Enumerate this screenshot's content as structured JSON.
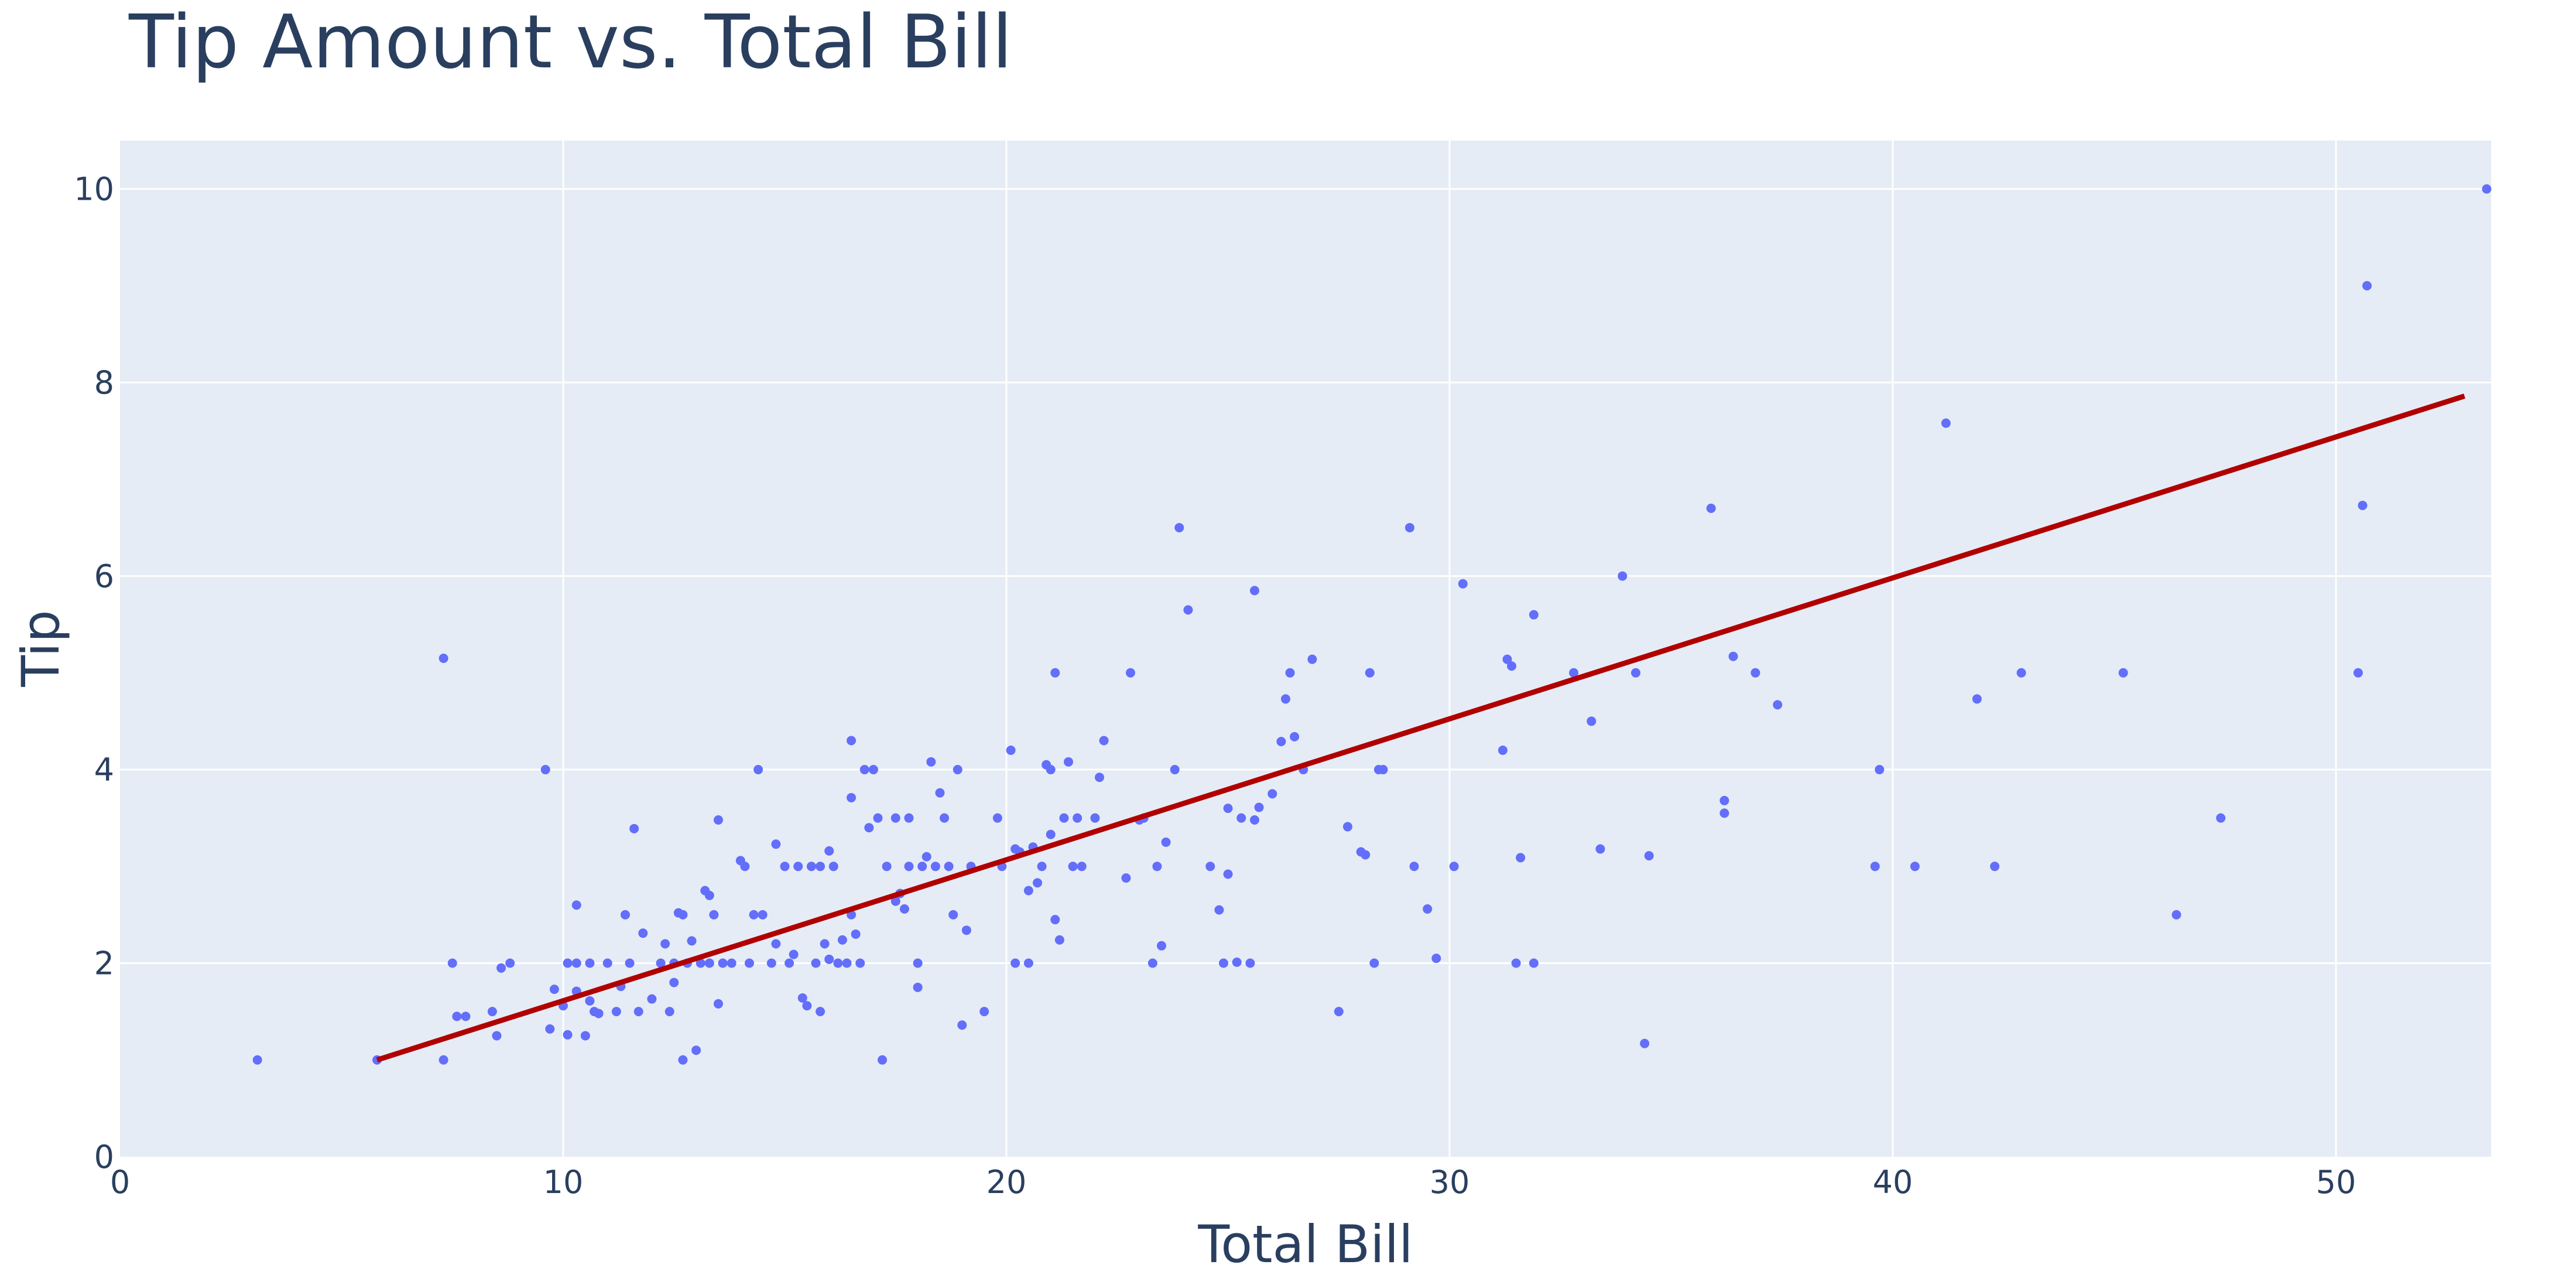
{
  "chart_data": {
    "type": "scatter",
    "title": "Tip Amount vs. Total Bill",
    "xlabel": "Total Bill",
    "ylabel": "Tip",
    "xlim": [
      0,
      53.5
    ],
    "ylim": [
      0,
      10.5
    ],
    "xticks": [
      0,
      10,
      20,
      30,
      40,
      50
    ],
    "yticks": [
      0,
      2,
      4,
      6,
      8,
      10
    ],
    "grid": true,
    "colors": {
      "plot_bg": "#e5ecf6",
      "points": "#636efa",
      "trendline": "#b10000",
      "text": "#2a3f5f",
      "grid": "#ffffff"
    },
    "trendline": {
      "x": [
        5.8,
        52.9
      ],
      "y": [
        1.0,
        7.86
      ]
    },
    "points": [
      [
        3.1,
        1.0
      ],
      [
        5.8,
        1.0
      ],
      [
        7.3,
        1.0
      ],
      [
        7.3,
        5.15
      ],
      [
        7.5,
        2.0
      ],
      [
        7.6,
        1.45
      ],
      [
        7.8,
        1.45
      ],
      [
        8.4,
        1.5
      ],
      [
        8.5,
        1.25
      ],
      [
        8.6,
        1.95
      ],
      [
        8.8,
        2.0
      ],
      [
        9.6,
        4.0
      ],
      [
        9.7,
        1.32
      ],
      [
        9.8,
        1.73
      ],
      [
        10.0,
        1.56
      ],
      [
        10.1,
        2.0
      ],
      [
        10.1,
        1.26
      ],
      [
        10.3,
        1.71
      ],
      [
        10.3,
        2.6
      ],
      [
        10.3,
        2.0
      ],
      [
        10.5,
        1.25
      ],
      [
        10.6,
        1.61
      ],
      [
        10.6,
        2.0
      ],
      [
        10.7,
        1.5
      ],
      [
        10.8,
        1.48
      ],
      [
        11.0,
        2.0
      ],
      [
        11.2,
        1.5
      ],
      [
        11.3,
        1.76
      ],
      [
        11.4,
        2.5
      ],
      [
        11.5,
        2.0
      ],
      [
        11.6,
        3.39
      ],
      [
        11.7,
        1.5
      ],
      [
        11.8,
        2.31
      ],
      [
        12.0,
        1.63
      ],
      [
        12.2,
        2.0
      ],
      [
        12.3,
        2.2
      ],
      [
        12.4,
        1.5
      ],
      [
        12.5,
        2.0
      ],
      [
        12.5,
        1.8
      ],
      [
        12.6,
        2.52
      ],
      [
        12.7,
        1.0
      ],
      [
        12.7,
        2.5
      ],
      [
        12.8,
        2.0
      ],
      [
        12.9,
        2.23
      ],
      [
        13.0,
        1.1
      ],
      [
        13.1,
        2.0
      ],
      [
        13.2,
        2.75
      ],
      [
        13.3,
        2.0
      ],
      [
        13.3,
        2.7
      ],
      [
        13.4,
        2.5
      ],
      [
        13.5,
        3.48
      ],
      [
        13.5,
        1.58
      ],
      [
        13.6,
        2.0
      ],
      [
        13.8,
        2.0
      ],
      [
        14.0,
        3.06
      ],
      [
        14.1,
        3.0
      ],
      [
        14.2,
        2.0
      ],
      [
        14.3,
        2.5
      ],
      [
        14.4,
        4.0
      ],
      [
        14.5,
        2.5
      ],
      [
        14.7,
        2.0
      ],
      [
        14.8,
        2.2
      ],
      [
        14.8,
        3.23
      ],
      [
        15.0,
        3.0
      ],
      [
        15.1,
        2.0
      ],
      [
        15.2,
        2.09
      ],
      [
        15.3,
        3.0
      ],
      [
        15.4,
        1.64
      ],
      [
        15.5,
        1.56
      ],
      [
        15.6,
        3.0
      ],
      [
        15.7,
        2.0
      ],
      [
        15.8,
        3.0
      ],
      [
        15.8,
        1.5
      ],
      [
        15.9,
        2.2
      ],
      [
        16.0,
        3.16
      ],
      [
        16.0,
        2.04
      ],
      [
        16.1,
        3.0
      ],
      [
        16.2,
        2.0
      ],
      [
        16.3,
        2.24
      ],
      [
        16.4,
        2.0
      ],
      [
        16.5,
        3.71
      ],
      [
        16.5,
        4.3
      ],
      [
        16.5,
        2.5
      ],
      [
        16.6,
        2.3
      ],
      [
        16.7,
        2.0
      ],
      [
        16.8,
        4.0
      ],
      [
        16.9,
        3.4
      ],
      [
        17.0,
        4.0
      ],
      [
        17.1,
        3.5
      ],
      [
        17.2,
        1.0
      ],
      [
        17.3,
        3.0
      ],
      [
        17.5,
        2.64
      ],
      [
        17.5,
        3.5
      ],
      [
        17.6,
        2.72
      ],
      [
        17.7,
        2.56
      ],
      [
        17.8,
        3.5
      ],
      [
        17.8,
        3.0
      ],
      [
        18.0,
        1.75
      ],
      [
        18.0,
        2.0
      ],
      [
        18.1,
        3.0
      ],
      [
        18.2,
        3.1
      ],
      [
        18.3,
        4.08
      ],
      [
        18.4,
        3.0
      ],
      [
        18.5,
        3.76
      ],
      [
        18.6,
        3.5
      ],
      [
        18.7,
        3.0
      ],
      [
        18.8,
        2.5
      ],
      [
        18.9,
        4.0
      ],
      [
        19.0,
        1.36
      ],
      [
        19.1,
        2.34
      ],
      [
        19.2,
        3.0
      ],
      [
        19.5,
        1.5
      ],
      [
        19.8,
        3.5
      ],
      [
        19.9,
        3.0
      ],
      [
        20.1,
        4.2
      ],
      [
        20.2,
        2.0
      ],
      [
        20.2,
        3.18
      ],
      [
        20.3,
        3.15
      ],
      [
        20.5,
        2.0
      ],
      [
        20.5,
        2.75
      ],
      [
        20.6,
        3.2
      ],
      [
        20.7,
        2.83
      ],
      [
        20.8,
        3.0
      ],
      [
        20.9,
        4.05
      ],
      [
        21.0,
        3.33
      ],
      [
        21.0,
        4.0
      ],
      [
        21.1,
        2.45
      ],
      [
        21.1,
        5.0
      ],
      [
        21.2,
        2.24
      ],
      [
        21.3,
        3.5
      ],
      [
        21.4,
        4.08
      ],
      [
        21.5,
        3.0
      ],
      [
        21.6,
        3.5
      ],
      [
        21.7,
        3.0
      ],
      [
        22.0,
        3.5
      ],
      [
        22.1,
        3.92
      ],
      [
        22.2,
        4.3
      ],
      [
        22.7,
        2.88
      ],
      [
        22.8,
        5.0
      ],
      [
        23.0,
        3.48
      ],
      [
        23.1,
        3.5
      ],
      [
        23.3,
        2.0
      ],
      [
        23.4,
        3.0
      ],
      [
        23.5,
        2.18
      ],
      [
        23.6,
        3.25
      ],
      [
        23.8,
        4.0
      ],
      [
        23.9,
        6.5
      ],
      [
        24.1,
        5.65
      ],
      [
        24.6,
        3.0
      ],
      [
        24.8,
        2.55
      ],
      [
        24.9,
        2.0
      ],
      [
        25.0,
        2.92
      ],
      [
        25.0,
        3.6
      ],
      [
        25.2,
        2.01
      ],
      [
        25.3,
        3.5
      ],
      [
        25.5,
        2.0
      ],
      [
        25.6,
        3.48
      ],
      [
        25.6,
        5.85
      ],
      [
        25.7,
        3.61
      ],
      [
        26.0,
        3.75
      ],
      [
        26.2,
        4.29
      ],
      [
        26.3,
        4.73
      ],
      [
        26.4,
        5.0
      ],
      [
        26.5,
        4.34
      ],
      [
        26.7,
        4.0
      ],
      [
        26.9,
        5.14
      ],
      [
        27.5,
        1.5
      ],
      [
        27.7,
        3.41
      ],
      [
        28.0,
        3.15
      ],
      [
        28.1,
        3.12
      ],
      [
        28.2,
        5.0
      ],
      [
        28.3,
        2.0
      ],
      [
        28.4,
        4.0
      ],
      [
        28.5,
        4.0
      ],
      [
        29.1,
        6.5
      ],
      [
        29.2,
        3.0
      ],
      [
        29.5,
        2.56
      ],
      [
        29.7,
        2.05
      ],
      [
        30.1,
        3.0
      ],
      [
        30.3,
        5.92
      ],
      [
        31.2,
        4.2
      ],
      [
        31.3,
        5.14
      ],
      [
        31.4,
        5.07
      ],
      [
        31.5,
        2.0
      ],
      [
        31.6,
        3.09
      ],
      [
        31.9,
        5.6
      ],
      [
        31.9,
        2.0
      ],
      [
        32.8,
        5.0
      ],
      [
        33.2,
        4.5
      ],
      [
        33.4,
        3.18
      ],
      [
        33.9,
        6.0
      ],
      [
        34.2,
        5.0
      ],
      [
        34.4,
        1.17
      ],
      [
        34.5,
        3.11
      ],
      [
        35.9,
        6.7
      ],
      [
        36.2,
        3.68
      ],
      [
        36.2,
        3.55
      ],
      [
        36.4,
        5.17
      ],
      [
        36.9,
        5.0
      ],
      [
        37.4,
        4.67
      ],
      [
        39.6,
        3.0
      ],
      [
        39.7,
        4.0
      ],
      [
        40.5,
        3.0
      ],
      [
        41.2,
        7.58
      ],
      [
        41.9,
        4.73
      ],
      [
        42.3,
        3.0
      ],
      [
        42.9,
        5.0
      ],
      [
        45.2,
        5.0
      ],
      [
        46.4,
        2.5
      ],
      [
        47.4,
        3.5
      ],
      [
        50.5,
        5.0
      ],
      [
        50.7,
        9.0
      ],
      [
        50.6,
        6.73
      ],
      [
        53.4,
        10.0
      ]
    ]
  }
}
